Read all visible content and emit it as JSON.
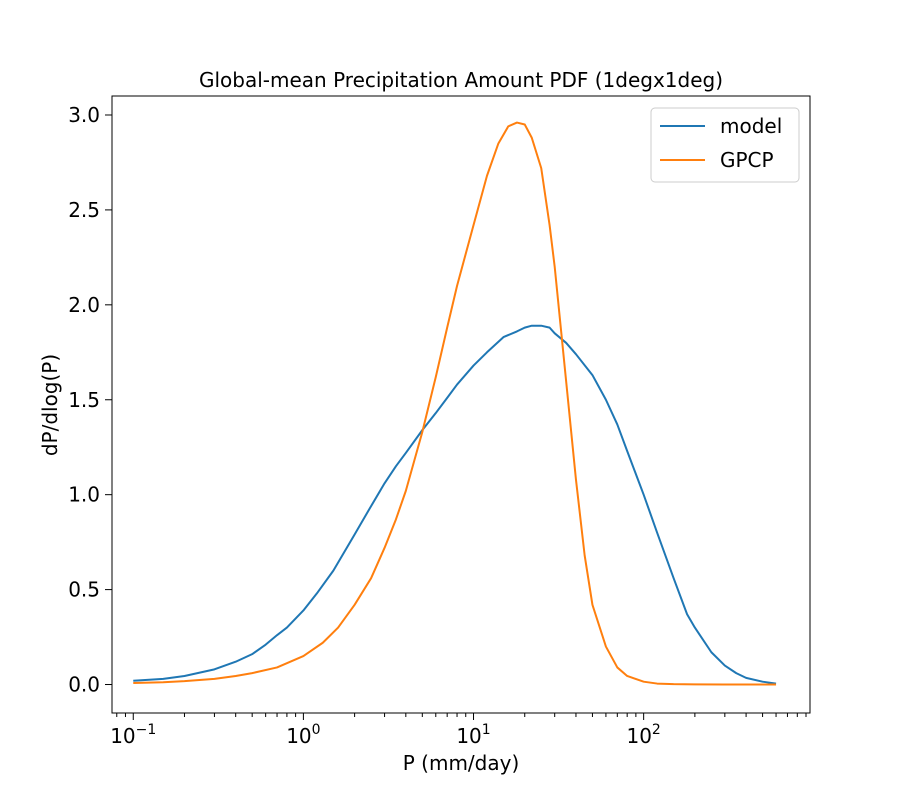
{
  "chart_data": {
    "type": "line",
    "title": "Global-mean Precipitation Amount PDF (1degx1deg)",
    "xlabel": "P (mm/day)",
    "ylabel": "dP/dlog(P)",
    "xscale": "log",
    "xlim": [
      0.075,
      950
    ],
    "ylim": [
      -0.15,
      3.1
    ],
    "x_ticks": [
      {
        "value": 0.1,
        "base": "10",
        "exp": "−1"
      },
      {
        "value": 1,
        "base": "10",
        "exp": "0"
      },
      {
        "value": 10,
        "base": "10",
        "exp": "1"
      },
      {
        "value": 100,
        "base": "10",
        "exp": "2"
      }
    ],
    "y_ticks": [
      {
        "value": 0.0,
        "label": "0.0"
      },
      {
        "value": 0.5,
        "label": "0.5"
      },
      {
        "value": 1.0,
        "label": "1.0"
      },
      {
        "value": 1.5,
        "label": "1.5"
      },
      {
        "value": 2.0,
        "label": "2.0"
      },
      {
        "value": 2.5,
        "label": "2.5"
      },
      {
        "value": 3.0,
        "label": "3.0"
      }
    ],
    "grid": false,
    "legend_position": "top-right",
    "series": [
      {
        "name": "model",
        "color": "#1f77b4",
        "points": [
          [
            0.1,
            0.02
          ],
          [
            0.15,
            0.03
          ],
          [
            0.2,
            0.045
          ],
          [
            0.3,
            0.08
          ],
          [
            0.4,
            0.12
          ],
          [
            0.5,
            0.16
          ],
          [
            0.6,
            0.21
          ],
          [
            0.7,
            0.26
          ],
          [
            0.8,
            0.3
          ],
          [
            1.0,
            0.39
          ],
          [
            1.2,
            0.48
          ],
          [
            1.5,
            0.6
          ],
          [
            2.0,
            0.79
          ],
          [
            2.5,
            0.94
          ],
          [
            3.0,
            1.06
          ],
          [
            3.5,
            1.15
          ],
          [
            4.0,
            1.22
          ],
          [
            5.0,
            1.34
          ],
          [
            6.0,
            1.43
          ],
          [
            7.0,
            1.51
          ],
          [
            8.0,
            1.58
          ],
          [
            10.0,
            1.68
          ],
          [
            12.0,
            1.75
          ],
          [
            15.0,
            1.83
          ],
          [
            18.0,
            1.86
          ],
          [
            20.0,
            1.88
          ],
          [
            22.0,
            1.89
          ],
          [
            25.0,
            1.89
          ],
          [
            28.0,
            1.88
          ],
          [
            30.0,
            1.85
          ],
          [
            35.0,
            1.8
          ],
          [
            40.0,
            1.74
          ],
          [
            50.0,
            1.63
          ],
          [
            60.0,
            1.5
          ],
          [
            70.0,
            1.37
          ],
          [
            80.0,
            1.23
          ],
          [
            100.0,
            1.0
          ],
          [
            120.0,
            0.8
          ],
          [
            150.0,
            0.56
          ],
          [
            180.0,
            0.37
          ],
          [
            200.0,
            0.3
          ],
          [
            250.0,
            0.17
          ],
          [
            300.0,
            0.1
          ],
          [
            350.0,
            0.06
          ],
          [
            400.0,
            0.035
          ],
          [
            500.0,
            0.015
          ],
          [
            600.0,
            0.005
          ]
        ]
      },
      {
        "name": "GPCP",
        "color": "#ff7f0e",
        "points": [
          [
            0.1,
            0.008
          ],
          [
            0.15,
            0.012
          ],
          [
            0.2,
            0.018
          ],
          [
            0.3,
            0.03
          ],
          [
            0.4,
            0.045
          ],
          [
            0.5,
            0.06
          ],
          [
            0.7,
            0.09
          ],
          [
            1.0,
            0.15
          ],
          [
            1.3,
            0.22
          ],
          [
            1.6,
            0.3
          ],
          [
            2.0,
            0.42
          ],
          [
            2.5,
            0.56
          ],
          [
            3.0,
            0.72
          ],
          [
            3.5,
            0.87
          ],
          [
            4.0,
            1.02
          ],
          [
            5.0,
            1.33
          ],
          [
            6.0,
            1.62
          ],
          [
            7.0,
            1.88
          ],
          [
            8.0,
            2.1
          ],
          [
            10.0,
            2.42
          ],
          [
            12.0,
            2.68
          ],
          [
            14.0,
            2.85
          ],
          [
            16.0,
            2.94
          ],
          [
            18.0,
            2.96
          ],
          [
            20.0,
            2.95
          ],
          [
            22.0,
            2.88
          ],
          [
            25.0,
            2.72
          ],
          [
            28.0,
            2.42
          ],
          [
            30.0,
            2.2
          ],
          [
            35.0,
            1.6
          ],
          [
            40.0,
            1.08
          ],
          [
            45.0,
            0.68
          ],
          [
            50.0,
            0.42
          ],
          [
            60.0,
            0.2
          ],
          [
            70.0,
            0.09
          ],
          [
            80.0,
            0.045
          ],
          [
            100.0,
            0.015
          ],
          [
            120.0,
            0.005
          ],
          [
            150.0,
            0.002
          ],
          [
            200.0,
            0.001
          ],
          [
            300.0,
            0.0
          ],
          [
            600.0,
            0.0
          ]
        ]
      }
    ]
  }
}
